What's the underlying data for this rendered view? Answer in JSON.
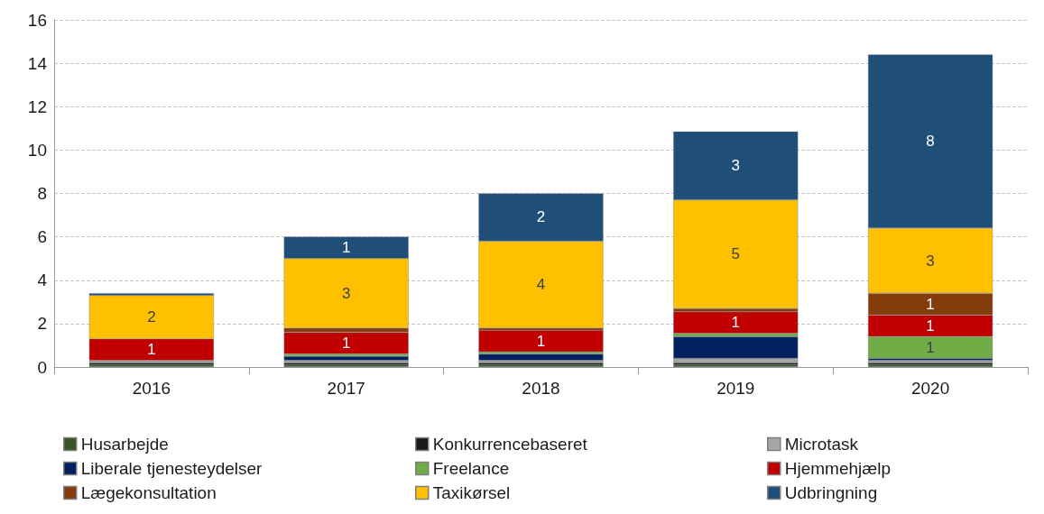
{
  "chart_data": {
    "type": "bar",
    "stacked": true,
    "categories": [
      "2016",
      "2017",
      "2018",
      "2019",
      "2020"
    ],
    "ylim": [
      0,
      16
    ],
    "yticks": [
      0,
      2,
      4,
      6,
      8,
      10,
      12,
      14,
      16
    ],
    "grid": "y",
    "legend": "bottom",
    "series": [
      {
        "name": "Husarbejde",
        "color": "#375623",
        "values": [
          0.1,
          0.1,
          0.1,
          0.1,
          0.1
        ]
      },
      {
        "name": "Konkurrencebaseret",
        "color": "#1a1a1a",
        "values": [
          0.1,
          0.1,
          0.1,
          0.1,
          0.1
        ]
      },
      {
        "name": "Microtask",
        "color": "#a6a6a6",
        "values": [
          0.1,
          0.1,
          0.1,
          0.2,
          0.1
        ]
      },
      {
        "name": "Liberale tjenesteydelser",
        "color": "#002060",
        "values": [
          null,
          0.2,
          0.3,
          1.0,
          0.1
        ]
      },
      {
        "name": "Freelance",
        "color": "#70ad47",
        "values": [
          null,
          0.1,
          0.1,
          0.15,
          1.0
        ],
        "value_labels": [
          null,
          null,
          null,
          null,
          "1"
        ]
      },
      {
        "name": "Hjemmehjælp",
        "color": "#c00000",
        "values": [
          1.0,
          1.0,
          1.0,
          1.0,
          1.0
        ],
        "value_labels": [
          "1",
          "1",
          "1",
          "1",
          "1"
        ]
      },
      {
        "name": "Lægekonsultation",
        "color": "#843c0c",
        "values": [
          null,
          0.2,
          0.1,
          0.15,
          1.0
        ],
        "value_labels": [
          null,
          null,
          null,
          null,
          "1"
        ]
      },
      {
        "name": "Taxikørsel",
        "color": "#ffc000",
        "values": [
          2.0,
          3.2,
          4.0,
          5.0,
          3.0
        ],
        "value_labels": [
          "2",
          "3",
          "4",
          "5",
          "3"
        ]
      },
      {
        "name": "Udbringning",
        "color": "#1f4e79",
        "values": [
          0.1,
          1.0,
          2.2,
          3.15,
          8.0
        ],
        "value_labels": [
          null,
          "1",
          "2",
          "3",
          "8"
        ]
      }
    ]
  }
}
